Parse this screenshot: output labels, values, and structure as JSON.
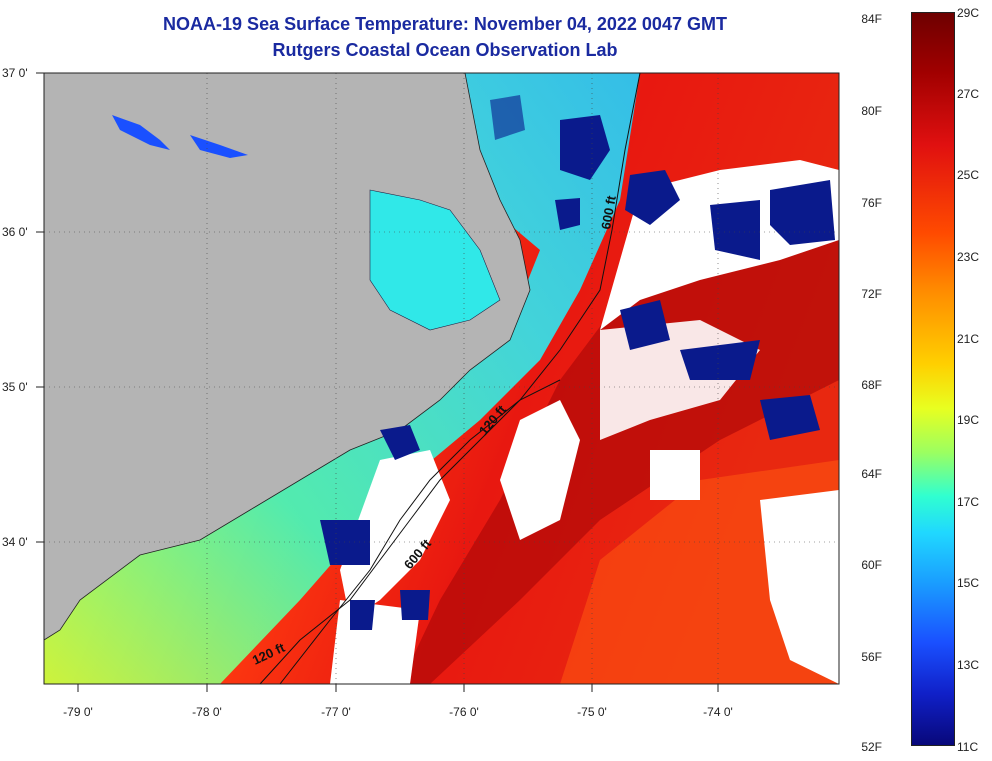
{
  "title_line1": "NOAA-19 Sea Surface Temperature:  November 04, 2022 0047 GMT",
  "title_line2": "Rutgers Coastal Ocean Observation Lab",
  "lat_labels": [
    "37 0'",
    "36 0'",
    "35 0'",
    "34 0'"
  ],
  "lon_labels": [
    "-79 0'",
    "-78 0'",
    "-77 0'",
    "-76 0'",
    "-75 0'",
    "-74 0'"
  ],
  "depth_labels": [
    "600 ft",
    "120 ft",
    "600 ft",
    "120 ft"
  ],
  "colorbar": {
    "fahrenheit": [
      "84F",
      "80F",
      "76F",
      "72F",
      "68F",
      "64F",
      "60F",
      "56F",
      "52F"
    ],
    "celsius": [
      "29C",
      "27C",
      "25C",
      "23C",
      "21C",
      "19C",
      "17C",
      "15C",
      "13C",
      "11C"
    ]
  },
  "colors": {
    "land": "#b4b4b4",
    "cold": "#0a1a8c",
    "cyan": "#30e8e8",
    "warm": "#e02010",
    "hot": "#a00000",
    "title": "#1a2aa0"
  }
}
